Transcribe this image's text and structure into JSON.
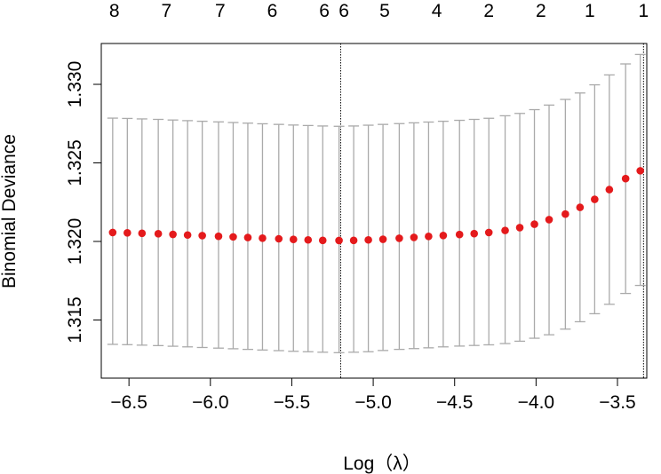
{
  "chart_data": {
    "type": "scatter",
    "xlabel": "Log（λ）",
    "ylabel": "Binomial Deviance",
    "xlim": [
      -6.67,
      -3.32
    ],
    "ylim": [
      1.3113,
      1.3326
    ],
    "x_ticks": [
      -6.5,
      -6.0,
      -5.5,
      -5.0,
      -4.5,
      -4.0,
      -3.5
    ],
    "x_tick_labels": [
      "−6.5",
      "−6.0",
      "−5.5",
      "−5.0",
      "−4.5",
      "−4.0",
      "−3.5"
    ],
    "y_ticks": [
      1.315,
      1.32,
      1.325,
      1.33
    ],
    "y_tick_labels": [
      "1.315",
      "1.320",
      "1.325",
      "1.330"
    ],
    "top_axis": {
      "x": [
        -6.59,
        -6.27,
        -5.94,
        -5.62,
        -5.3,
        -5.18,
        -4.93,
        -4.61,
        -4.29,
        -3.97,
        -3.67,
        -3.34
      ],
      "labels": [
        "8",
        "7",
        "7",
        "6",
        "6",
        "6",
        "5",
        "4",
        "2",
        "2",
        "1",
        "1"
      ]
    },
    "vlines": [
      {
        "x": -5.2,
        "style": "dotted"
      },
      {
        "x": -3.34,
        "style": "dotted"
      }
    ],
    "point_color": "#e41a1c",
    "errorbar_color": "#aaaaaa",
    "grid": false,
    "points": [
      {
        "x": -6.6,
        "y": 1.32057,
        "lo": 1.31345,
        "hi": 1.32785
      },
      {
        "x": -6.51,
        "y": 1.32055,
        "lo": 1.31343,
        "hi": 1.32783
      },
      {
        "x": -6.42,
        "y": 1.32052,
        "lo": 1.3134,
        "hi": 1.3278
      },
      {
        "x": -6.32,
        "y": 1.32049,
        "lo": 1.31337,
        "hi": 1.32777
      },
      {
        "x": -6.23,
        "y": 1.32045,
        "lo": 1.31333,
        "hi": 1.32773
      },
      {
        "x": -6.14,
        "y": 1.32041,
        "lo": 1.31329,
        "hi": 1.32769
      },
      {
        "x": -6.05,
        "y": 1.32037,
        "lo": 1.31325,
        "hi": 1.32765
      },
      {
        "x": -5.95,
        "y": 1.32033,
        "lo": 1.31321,
        "hi": 1.32761
      },
      {
        "x": -5.86,
        "y": 1.32029,
        "lo": 1.31317,
        "hi": 1.32757
      },
      {
        "x": -5.77,
        "y": 1.32025,
        "lo": 1.31313,
        "hi": 1.32753
      },
      {
        "x": -5.68,
        "y": 1.32021,
        "lo": 1.31309,
        "hi": 1.32749
      },
      {
        "x": -5.58,
        "y": 1.32017,
        "lo": 1.31305,
        "hi": 1.32745
      },
      {
        "x": -5.49,
        "y": 1.32013,
        "lo": 1.31301,
        "hi": 1.32741
      },
      {
        "x": -5.4,
        "y": 1.3201,
        "lo": 1.31298,
        "hi": 1.32738
      },
      {
        "x": -5.31,
        "y": 1.32007,
        "lo": 1.31295,
        "hi": 1.32735
      },
      {
        "x": -5.21,
        "y": 1.32006,
        "lo": 1.31292,
        "hi": 1.32733
      },
      {
        "x": -5.12,
        "y": 1.32007,
        "lo": 1.31295,
        "hi": 1.32735
      },
      {
        "x": -5.03,
        "y": 1.3201,
        "lo": 1.31298,
        "hi": 1.3274
      },
      {
        "x": -4.94,
        "y": 1.32014,
        "lo": 1.31306,
        "hi": 1.32745
      },
      {
        "x": -4.84,
        "y": 1.3202,
        "lo": 1.31313,
        "hi": 1.3275
      },
      {
        "x": -4.75,
        "y": 1.32026,
        "lo": 1.31318,
        "hi": 1.32755
      },
      {
        "x": -4.66,
        "y": 1.32032,
        "lo": 1.31323,
        "hi": 1.3276
      },
      {
        "x": -4.57,
        "y": 1.32038,
        "lo": 1.31329,
        "hi": 1.32765
      },
      {
        "x": -4.47,
        "y": 1.32044,
        "lo": 1.31334,
        "hi": 1.32771
      },
      {
        "x": -4.38,
        "y": 1.3205,
        "lo": 1.31338,
        "hi": 1.32777
      },
      {
        "x": -4.29,
        "y": 1.32057,
        "lo": 1.31342,
        "hi": 1.32784
      },
      {
        "x": -4.19,
        "y": 1.3207,
        "lo": 1.3135,
        "hi": 1.328
      },
      {
        "x": -4.1,
        "y": 1.32088,
        "lo": 1.31365,
        "hi": 1.32815
      },
      {
        "x": -4.01,
        "y": 1.3211,
        "lo": 1.31384,
        "hi": 1.32839
      },
      {
        "x": -3.92,
        "y": 1.32139,
        "lo": 1.31406,
        "hi": 1.32868
      },
      {
        "x": -3.82,
        "y": 1.32174,
        "lo": 1.31442,
        "hi": 1.32904
      },
      {
        "x": -3.73,
        "y": 1.32217,
        "lo": 1.31489,
        "hi": 1.32945
      },
      {
        "x": -3.64,
        "y": 1.32268,
        "lo": 1.3154,
        "hi": 1.32997
      },
      {
        "x": -3.55,
        "y": 1.3233,
        "lo": 1.316,
        "hi": 1.3306
      },
      {
        "x": -3.45,
        "y": 1.324,
        "lo": 1.31669,
        "hi": 1.3313
      },
      {
        "x": -3.36,
        "y": 1.3245,
        "lo": 1.3172,
        "hi": 1.3319
      }
    ]
  }
}
